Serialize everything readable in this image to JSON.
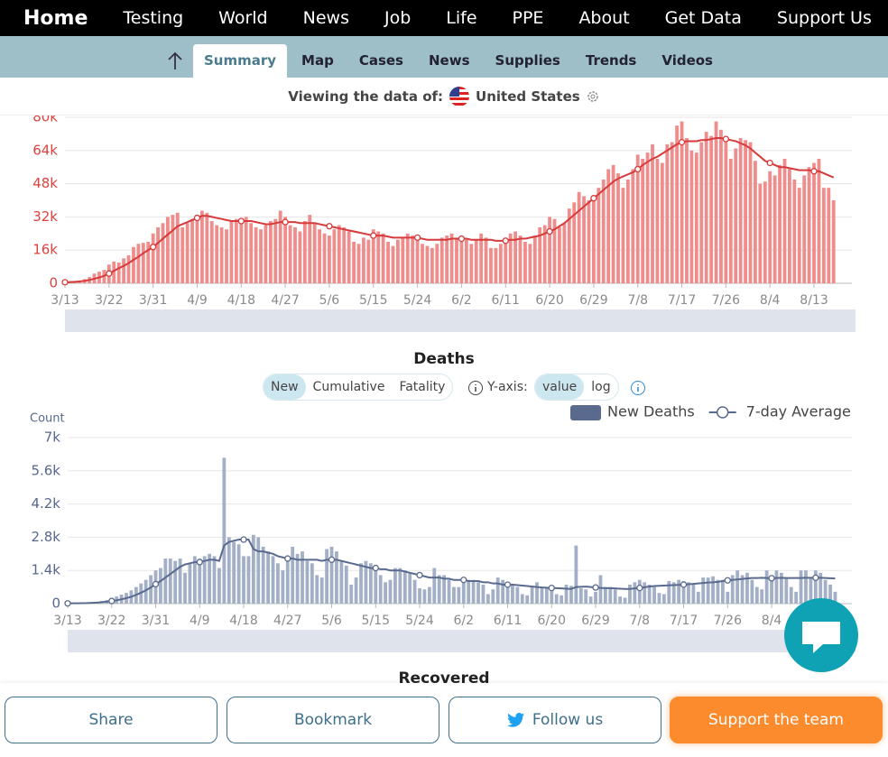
{
  "nav": {
    "brand": "Home",
    "items": [
      "Testing",
      "World",
      "News",
      "Job",
      "Life",
      "PPE",
      "About",
      "Get Data",
      "Support Us"
    ]
  },
  "tabs": {
    "items": [
      "Summary",
      "Map",
      "Cases",
      "News",
      "Supplies",
      "Trends",
      "Videos"
    ],
    "active": 0
  },
  "viewing": {
    "label": "Viewing the data of:",
    "country": "United States"
  },
  "chart_data": [
    {
      "type": "bar",
      "categories": [
        "3/13",
        null,
        null,
        null,
        null,
        null,
        null,
        null,
        null,
        "3/22",
        null,
        null,
        null,
        null,
        null,
        null,
        null,
        null,
        "3/31",
        null,
        null,
        null,
        null,
        null,
        null,
        null,
        null,
        "4/9",
        null,
        null,
        null,
        null,
        null,
        null,
        null,
        null,
        "4/18",
        null,
        null,
        null,
        null,
        null,
        null,
        null,
        null,
        "4/27",
        null,
        null,
        null,
        null,
        null,
        null,
        null,
        null,
        "5/6",
        null,
        null,
        null,
        null,
        null,
        null,
        null,
        null,
        "5/15",
        null,
        null,
        null,
        null,
        null,
        null,
        null,
        null,
        "5/24",
        null,
        null,
        null,
        null,
        null,
        null,
        null,
        null,
        "6/2",
        null,
        null,
        null,
        null,
        null,
        null,
        null,
        null,
        "6/11",
        null,
        null,
        null,
        null,
        null,
        null,
        null,
        null,
        "6/20",
        null,
        null,
        null,
        null,
        null,
        null,
        null,
        null,
        "6/29",
        null,
        null,
        null,
        null,
        null,
        null,
        null,
        null,
        "7/8",
        null,
        null,
        null,
        null,
        null,
        null,
        null,
        null,
        "7/17",
        null,
        null,
        null,
        null,
        null,
        null,
        null,
        null,
        "7/26",
        null,
        null,
        null,
        null,
        null,
        null,
        null,
        null,
        "8/4",
        null,
        null,
        null,
        null,
        null,
        null,
        null,
        null,
        "8/13",
        null,
        null,
        null,
        null
      ],
      "ylim": [
        0,
        80000
      ],
      "yticks": [
        0,
        {
          "value": 16000,
          "label": "16k"
        },
        {
          "value": 32000,
          "label": "32k"
        },
        {
          "value": 48000,
          "label": "48k"
        },
        {
          "value": 64000,
          "label": "64k"
        },
        {
          "value": 80000,
          "label": "80k"
        }
      ],
      "grid": true,
      "series": [
        {
          "type": "bar",
          "color": "#ef8c8c",
          "values": [
            500,
            700,
            900,
            1300,
            2000,
            3000,
            4700,
            5600,
            6500,
            9000,
            10500,
            10000,
            12000,
            13500,
            17500,
            19000,
            19500,
            20000,
            24000,
            27000,
            29000,
            32000,
            33000,
            34000,
            27000,
            29000,
            31000,
            33000,
            35000,
            34000,
            30000,
            28000,
            27000,
            26000,
            30000,
            31000,
            30000,
            32000,
            29000,
            27000,
            26000,
            28000,
            30000,
            31000,
            35000,
            32000,
            28000,
            27000,
            25000,
            30000,
            33000,
            29000,
            26000,
            24000,
            23000,
            26000,
            28000,
            27000,
            25000,
            20000,
            19000,
            22000,
            21000,
            26000,
            25000,
            24000,
            20000,
            18000,
            21000,
            22000,
            24000,
            23000,
            21000,
            19000,
            18000,
            17000,
            19000,
            22000,
            23000,
            24000,
            22000,
            20000,
            21000,
            19000,
            21000,
            24000,
            22000,
            17000,
            17000,
            19000,
            22000,
            24000,
            25000,
            23000,
            20000,
            19000,
            23000,
            27000,
            28000,
            32000,
            31000,
            27000,
            29000,
            36000,
            39000,
            44000,
            42000,
            40000,
            41000,
            46000,
            50000,
            55000,
            57000,
            53000,
            46000,
            50000,
            55000,
            62000,
            60000,
            63000,
            67000,
            60000,
            58000,
            67000,
            68000,
            76000,
            78000,
            70000,
            64000,
            63000,
            68000,
            73000,
            71000,
            78000,
            74000,
            68000,
            60000,
            65000,
            70000,
            69000,
            68000,
            59000,
            48000,
            49000,
            54000,
            52000,
            57000,
            60000,
            55000,
            50000,
            46000,
            52000,
            56000,
            58000,
            60000,
            46000,
            46000,
            40000
          ]
        },
        {
          "type": "line",
          "color": "#d63a3a",
          "values": [
            500,
            600,
            700,
            900,
            1200,
            1600,
            2200,
            2800,
            3600,
            4700,
            6000,
            7300,
            8400,
            9700,
            11300,
            12800,
            14500,
            16000,
            17500,
            19500,
            21500,
            23500,
            25500,
            27500,
            28500,
            29500,
            30500,
            31500,
            32500,
            32500,
            32000,
            31500,
            31000,
            30500,
            30000,
            30000,
            30000,
            30000,
            30000,
            29500,
            29000,
            28500,
            28500,
            29000,
            29500,
            29500,
            29500,
            29500,
            29000,
            29000,
            29000,
            29000,
            28500,
            28000,
            27500,
            27000,
            26500,
            26000,
            25500,
            25000,
            24500,
            24000,
            23500,
            23000,
            23000,
            23000,
            22500,
            22000,
            22000,
            22000,
            22000,
            22000,
            22000,
            21500,
            21000,
            21000,
            21000,
            21000,
            21000,
            21500,
            21500,
            21500,
            21500,
            21000,
            21000,
            21000,
            21000,
            21000,
            20500,
            20500,
            20500,
            21000,
            21000,
            21500,
            21500,
            22000,
            22500,
            23000,
            24000,
            25000,
            26000,
            27500,
            29000,
            31000,
            33000,
            35000,
            37000,
            39000,
            41000,
            43000,
            45000,
            47000,
            49000,
            50500,
            51500,
            52500,
            53500,
            55000,
            57000,
            58500,
            60000,
            61000,
            62500,
            64000,
            65500,
            67000,
            68000,
            68500,
            68500,
            68500,
            69000,
            69000,
            69500,
            70000,
            70000,
            69500,
            69000,
            68500,
            67500,
            66500,
            65000,
            63000,
            61000,
            59000,
            58000,
            57000,
            56000,
            56000,
            55500,
            55000,
            54500,
            54500,
            54500,
            54000,
            54000,
            53000,
            52000,
            51000
          ]
        }
      ]
    },
    {
      "type": "bar",
      "title": "Deaths",
      "y_label": "Count",
      "legend": true,
      "ylim": [
        0,
        7000
      ],
      "yticks": [
        0,
        {
          "value": 1400,
          "label": "1.4k"
        },
        {
          "value": 2800,
          "label": "2.8k"
        },
        {
          "value": 4200,
          "label": "4.2k"
        },
        {
          "value": 5600,
          "label": "5.6k"
        },
        {
          "value": 7000,
          "label": "7k"
        }
      ],
      "grid": true,
      "series": [
        {
          "type": "bar",
          "name": "New Deaths",
          "color": "#a3afc7",
          "values": [
            10,
            15,
            20,
            30,
            50,
            60,
            80,
            110,
            150,
            250,
            300,
            380,
            450,
            560,
            700,
            850,
            1000,
            1200,
            1400,
            1500,
            1900,
            1900,
            1800,
            1900,
            1300,
            1700,
            2000,
            1900,
            2000,
            2100,
            2000,
            1500,
            6150,
            2800,
            2600,
            2500,
            2000,
            2000,
            2900,
            2800,
            2400,
            2200,
            2000,
            1700,
            1400,
            1900,
            2400,
            2100,
            2200,
            1800,
            1700,
            1200,
            1100,
            2300,
            2400,
            2200,
            1800,
            1600,
            800,
            1100,
            1700,
            1800,
            1700,
            1600,
            1200,
            900,
            1000,
            1500,
            1500,
            1400,
            1300,
            1000,
            650,
            600,
            700,
            1500,
            1200,
            1200,
            1000,
            700,
            700,
            1000,
            1000,
            1000,
            900,
            800,
            400,
            600,
            1100,
            1000,
            900,
            800,
            700,
            400,
            350,
            750,
            900,
            700,
            700,
            600,
            400,
            350,
            800,
            750,
            2450,
            650,
            600,
            300,
            500,
            1200,
            700,
            700,
            600,
            300,
            250,
            800,
            900,
            1000,
            900,
            800,
            700,
            450,
            400,
            950,
            900,
            1000,
            950,
            900,
            800,
            500,
            1100,
            1100,
            1150,
            1000,
            1000,
            500,
            1200,
            1400,
            1200,
            1300,
            1000,
            700,
            600,
            1400,
            1200,
            1400,
            1300,
            1100,
            700,
            500,
            1400,
            1400,
            1100,
            1400,
            1300,
            1000,
            800,
            500
          ]
        },
        {
          "type": "line",
          "name": "7-day Average",
          "color": "#5a6a8f",
          "values": [
            10,
            12,
            15,
            20,
            25,
            35,
            45,
            60,
            80,
            110,
            140,
            180,
            230,
            290,
            370,
            460,
            560,
            680,
            820,
            950,
            1100,
            1250,
            1400,
            1550,
            1650,
            1700,
            1750,
            1750,
            1800,
            1850,
            1850,
            1800,
            2450,
            2600,
            2650,
            2700,
            2700,
            2700,
            2300,
            2200,
            2200,
            2150,
            2100,
            2000,
            1950,
            1900,
            1900,
            1850,
            1850,
            1850,
            1850,
            1850,
            1800,
            1850,
            1850,
            1850,
            1800,
            1750,
            1700,
            1650,
            1600,
            1550,
            1500,
            1500,
            1450,
            1450,
            1400,
            1400,
            1400,
            1350,
            1300,
            1250,
            1200,
            1150,
            1100,
            1100,
            1100,
            1050,
            1050,
            1000,
            1000,
            1000,
            950,
            950,
            950,
            900,
            900,
            850,
            850,
            800,
            800,
            800,
            780,
            760,
            740,
            720,
            700,
            680,
            670,
            660,
            650,
            640,
            630,
            620,
            700,
            710,
            720,
            700,
            680,
            660,
            650,
            650,
            640,
            630,
            620,
            620,
            640,
            660,
            690,
            720,
            740,
            750,
            760,
            770,
            780,
            790,
            800,
            820,
            830,
            850,
            870,
            890,
            900,
            920,
            950,
            980,
            1000,
            1020,
            1040,
            1060,
            1080,
            1080,
            1090,
            1080,
            1070,
            1080,
            1090,
            1080,
            1080,
            1080,
            1080,
            1090,
            1090,
            1090,
            1090,
            1080,
            1070,
            1060
          ]
        }
      ]
    }
  ],
  "deaths_controls": {
    "modes": [
      "New",
      "Cumulative",
      "Fatality"
    ],
    "active_mode": 0,
    "yaxis_label": "Y-axis:",
    "scales": [
      "value",
      "log"
    ],
    "active_scale": 0
  },
  "next_section": "Recovered",
  "footer": [
    "Share",
    "Bookmark",
    "Follow us",
    "Support the team"
  ]
}
